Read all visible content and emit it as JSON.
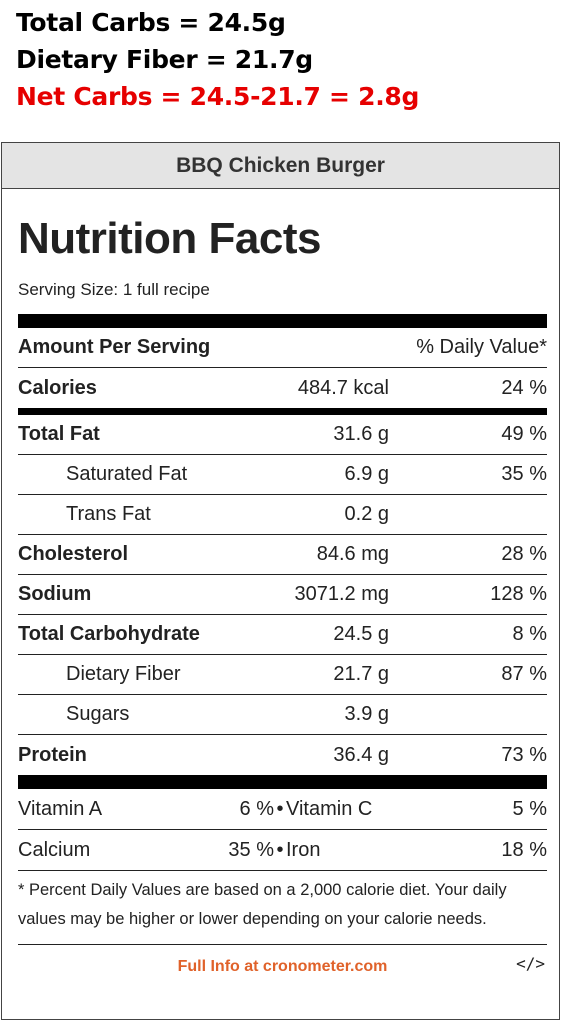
{
  "summary": {
    "total_carbs": "Total Carbs = 24.5g",
    "dietary_fiber": "Dietary Fiber = 21.7g",
    "net_carbs": "Net Carbs = 24.5-21.7 = 2.8g"
  },
  "card": {
    "header": "BBQ Chicken Burger",
    "title": "Nutrition Facts",
    "serving_size": "Serving Size: 1 full recipe",
    "amount_header": "Amount Per Serving",
    "dv_header": "% Daily Value*"
  },
  "rows": [
    {
      "name": "Calories",
      "amount": "484.7 kcal",
      "dv": "24 %"
    },
    {
      "name": "Total Fat",
      "amount": "31.6 g",
      "dv": "49 %"
    },
    {
      "name": "Saturated Fat",
      "amount": "6.9 g",
      "dv": "35 %"
    },
    {
      "name": "Trans Fat",
      "amount": "0.2 g",
      "dv": ""
    },
    {
      "name": "Cholesterol",
      "amount": "84.6 mg",
      "dv": "28 %"
    },
    {
      "name": "Sodium",
      "amount": "3071.2 mg",
      "dv": "128 %"
    },
    {
      "name": "Total Carbohydrate",
      "amount": "24.5 g",
      "dv": "8 %"
    },
    {
      "name": "Dietary Fiber",
      "amount": "21.7 g",
      "dv": "87 %"
    },
    {
      "name": "Sugars",
      "amount": "3.9 g",
      "dv": ""
    },
    {
      "name": "Protein",
      "amount": "36.4 g",
      "dv": "73 %"
    }
  ],
  "vitamins": [
    {
      "name1": "Vitamin A",
      "val1": "6 %",
      "sep": "•",
      "name2": "Vitamin C",
      "val2": "5 %"
    },
    {
      "name1": "Calcium",
      "val1": "35 %",
      "sep": "•",
      "name2": "Iron",
      "val2": "18 %"
    }
  ],
  "footnote": "* Percent Daily Values are based on a 2,000 calorie diet. Your daily values may be higher or lower depending on your calorie needs.",
  "footer": {
    "link": "Full Info at cronometer.com",
    "embed": "</>"
  },
  "colors": {
    "net_carbs": "#e60000",
    "link": "#e0622a"
  }
}
